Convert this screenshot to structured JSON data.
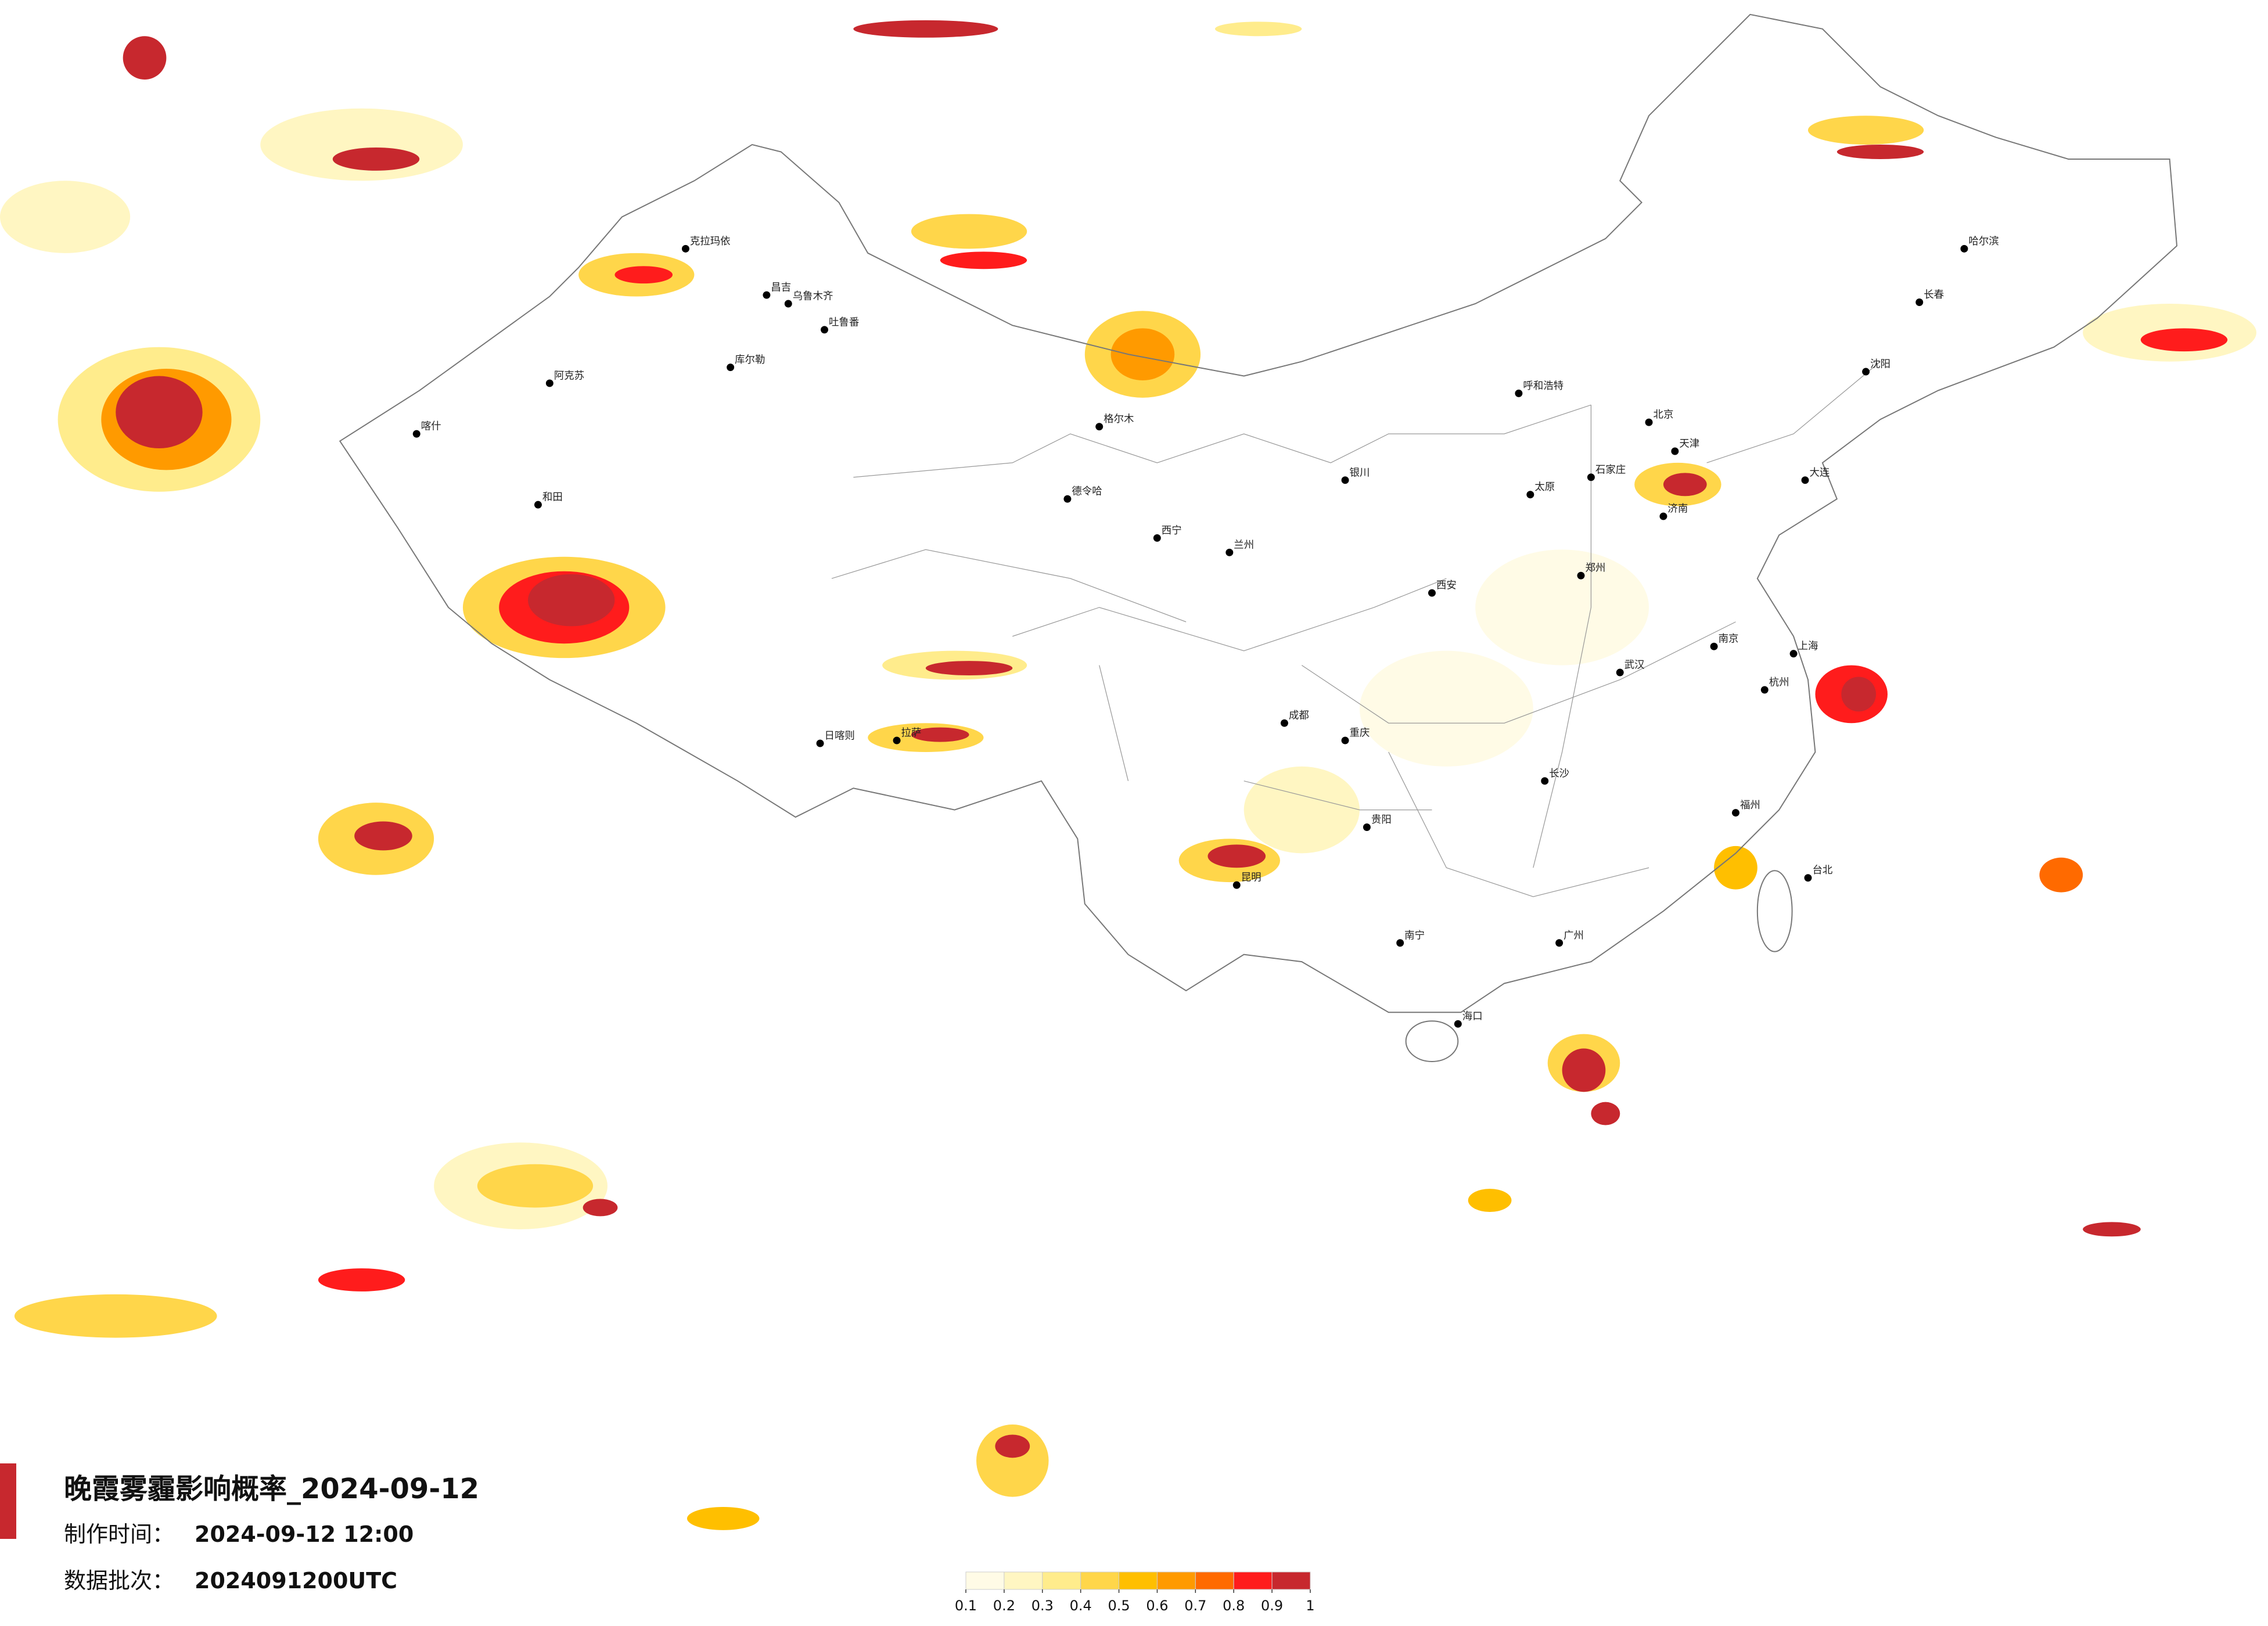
{
  "header": {
    "title": "晚霞雾霾影响概率_2024-09-12",
    "made_label": "制作时间：",
    "made_time": "2024-09-12 12:00",
    "batch_label": "数据批次：",
    "batch": "2024091200UTC"
  },
  "legend": {
    "ticks": [
      0.1,
      0.2,
      0.3,
      0.4,
      0.5,
      0.6,
      0.7,
      0.8,
      0.9,
      1
    ],
    "colors": [
      "#fffbe6",
      "#fff6c2",
      "#ffec8c",
      "#ffd64a",
      "#ffbf00",
      "#ff9a00",
      "#ff6a00",
      "#ff1c1c",
      "#c7282e"
    ]
  },
  "cities": [
    "克拉玛依",
    "昌吉",
    "乌鲁木齐",
    "吐鲁番",
    "库尔勒",
    "阿克苏",
    "和田",
    "喀什",
    "格尔木",
    "德令哈",
    "呼和浩特",
    "北京",
    "天津",
    "石家庄",
    "太原",
    "西安",
    "郑州",
    "武汉",
    "长沙",
    "广州",
    "上海",
    "南京",
    "杭州",
    "重庆",
    "成都",
    "贵阳",
    "昆明",
    "南宁",
    "海口",
    "福州",
    "台北",
    "哈尔滨",
    "长春",
    "沈阳",
    "拉萨",
    "日喀则",
    "兰州",
    "银川",
    "西宁",
    "济南",
    "大连"
  ]
}
